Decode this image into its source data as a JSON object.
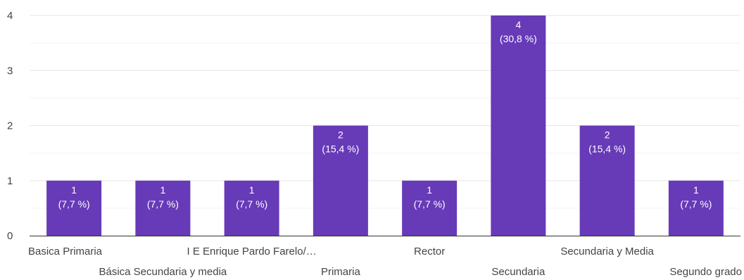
{
  "chart_data": {
    "type": "bar",
    "categories": [
      "Basica Primaria",
      "Básica Secundaria y media",
      "I E Enrique Pardo Farelo/…",
      "Primaria",
      "Rector",
      "Secundaria",
      "Secundaria y Media",
      "Segundo grado"
    ],
    "values": [
      1,
      1,
      1,
      2,
      1,
      4,
      2,
      1
    ],
    "percent_labels": [
      "(7,7 %)",
      "(7,7 %)",
      "(7,7 %)",
      "(15,4 %)",
      "(7,7 %)",
      "(30,8 %)",
      "(15,4 %)",
      "(7,7 %)"
    ],
    "yticks": [
      0,
      1,
      2,
      3,
      4
    ],
    "ylim": [
      0,
      4
    ],
    "grid": true,
    "bar_color": "#673ab7",
    "label_color": "#ffffff"
  }
}
